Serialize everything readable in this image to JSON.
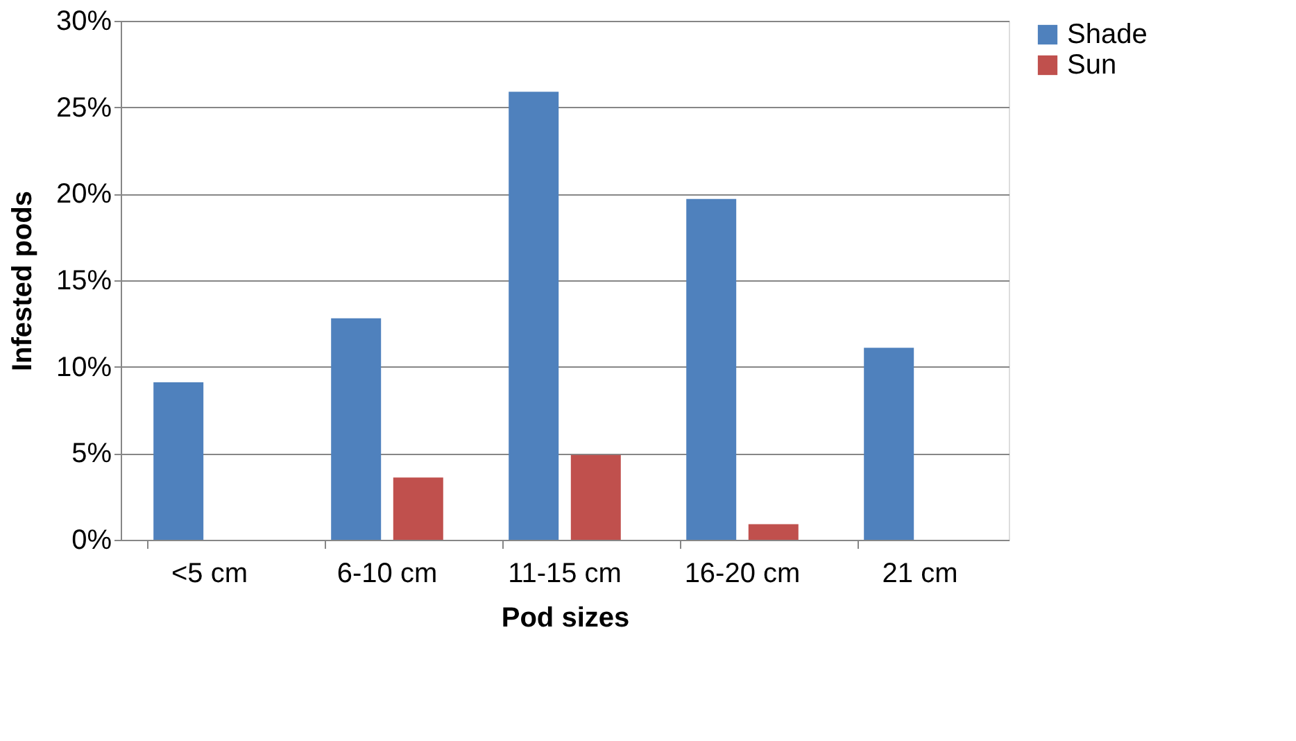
{
  "chart_data": {
    "type": "bar",
    "xlabel": "Pod sizes",
    "ylabel": "Infested pods",
    "categories": [
      "<5 cm",
      "6-10 cm",
      "11-15 cm",
      "16-20 cm",
      "21 cm"
    ],
    "series": [
      {
        "name": "Shade",
        "color": "#4f81bd",
        "values": [
          9.1,
          12.8,
          25.9,
          19.7,
          11.1
        ]
      },
      {
        "name": "Sun",
        "color": "#c0504d",
        "values": [
          0,
          3.6,
          4.9,
          0.9,
          0
        ]
      }
    ],
    "ylim": [
      0,
      30
    ],
    "yticks": [
      {
        "value": 0,
        "label": "0%"
      },
      {
        "value": 5,
        "label": "5%"
      },
      {
        "value": 10,
        "label": "10%"
      },
      {
        "value": 15,
        "label": "15%"
      },
      {
        "value": 20,
        "label": "20%"
      },
      {
        "value": 25,
        "label": "25%"
      },
      {
        "value": 30,
        "label": "30%"
      }
    ],
    "grid": "y",
    "legend": "right"
  }
}
